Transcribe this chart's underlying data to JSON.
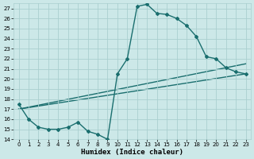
{
  "title": "",
  "xlabel": "Humidex (Indice chaleur)",
  "background_color": "#cce8e8",
  "grid_color": "#aacfcf",
  "line_color": "#1a6e6e",
  "xlim": [
    -0.5,
    23.5
  ],
  "ylim": [
    14,
    27.5
  ],
  "xticks": [
    0,
    1,
    2,
    3,
    4,
    5,
    6,
    7,
    8,
    9,
    10,
    11,
    12,
    13,
    14,
    15,
    16,
    17,
    18,
    19,
    20,
    21,
    22,
    23
  ],
  "yticks": [
    14,
    15,
    16,
    17,
    18,
    19,
    20,
    21,
    22,
    23,
    24,
    25,
    26,
    27
  ],
  "line1_x": [
    0,
    1,
    2,
    3,
    4,
    5,
    6,
    7,
    8,
    9,
    10,
    11,
    12,
    13,
    14,
    15,
    16,
    17,
    18,
    19,
    20,
    21,
    22,
    23
  ],
  "line1_y": [
    17.5,
    16.0,
    15.2,
    15.0,
    15.0,
    15.2,
    15.7,
    14.8,
    14.5,
    14.0,
    20.5,
    22.0,
    27.2,
    27.4,
    26.5,
    26.4,
    26.0,
    25.3,
    24.2,
    22.2,
    22.0,
    21.1,
    20.7,
    20.5
  ],
  "line2_x": [
    0,
    23
  ],
  "line2_y": [
    17.0,
    20.5
  ],
  "line3_x": [
    0,
    23
  ],
  "line3_y": [
    17.0,
    21.5
  ],
  "marker_size": 2.0,
  "line_width": 1.0,
  "tick_fontsize": 5.0,
  "label_fontsize": 6.5
}
